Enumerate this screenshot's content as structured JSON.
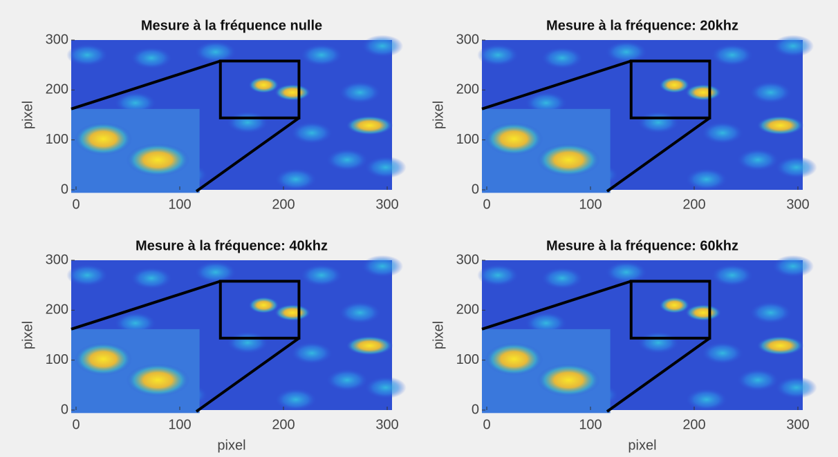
{
  "chart_data": [
    {
      "type": "image",
      "title": "Mesure à la fréquence nulle",
      "ylabel": "pixel",
      "xlim": [
        0,
        300
      ],
      "ylim": [
        0,
        300
      ],
      "xticks": [
        0,
        100,
        200,
        300
      ],
      "yticks": [
        0,
        100,
        200,
        300
      ]
    },
    {
      "type": "image",
      "title": "Mesure à la fréquence: 20khz",
      "ylabel": "pixel",
      "xlim": [
        0,
        300
      ],
      "ylim": [
        0,
        300
      ],
      "xticks": [
        0,
        100,
        200,
        300
      ],
      "yticks": [
        0,
        100,
        200,
        300
      ]
    },
    {
      "type": "image",
      "title": "Mesure à la fréquence: 40khz",
      "ylabel": "pixel",
      "xlabel": "pixel",
      "xlim": [
        0,
        300
      ],
      "ylim": [
        0,
        300
      ],
      "xticks": [
        0,
        100,
        200,
        300
      ],
      "yticks": [
        0,
        100,
        200,
        300
      ]
    },
    {
      "type": "image",
      "title": "Mesure à la fréquence: 60khz",
      "ylabel": "pixel",
      "xlabel": "pixel",
      "xlim": [
        0,
        300
      ],
      "ylim": [
        0,
        300
      ],
      "xticks": [
        0,
        100,
        200,
        300
      ],
      "yticks": [
        0,
        100,
        200,
        300
      ]
    }
  ]
}
